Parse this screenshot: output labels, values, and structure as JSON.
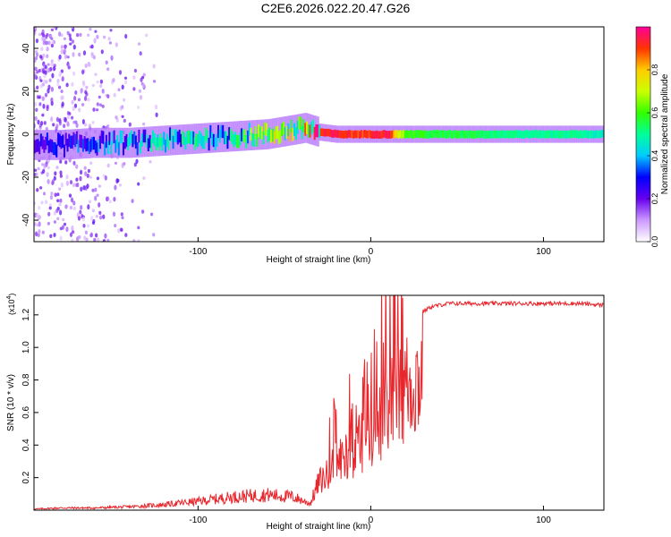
{
  "figure_title": "C2E6.2026.022.20.47.G26",
  "colors": {
    "line": "#e8272d",
    "axis": "#000000"
  },
  "chart_data": [
    {
      "type": "heatmap",
      "title": "C2E6.2026.022.20.47.G26",
      "xlabel": "Height of straight line (km)",
      "ylabel": "Frequency (Hz)",
      "xlim": [
        -195,
        135
      ],
      "ylim": [
        -50,
        50
      ],
      "xticks": [
        -100,
        0,
        100
      ],
      "xtick_labels": [
        "-100",
        "0",
        "100"
      ],
      "yticks": [
        -40,
        -20,
        0,
        20,
        40
      ],
      "ytick_labels": [
        "-40",
        "-20",
        "0",
        "20",
        "40"
      ],
      "colorbar": {
        "label": "Normalized spectral amplitude",
        "range": [
          0,
          1
        ],
        "ticks": [
          0,
          0.2,
          0.4,
          0.6,
          0.8
        ],
        "tick_labels": [
          "0.0",
          "0.2",
          "0.4",
          "0.6",
          "0.8"
        ]
      },
      "ridge": {
        "description": "dominant frequency centre vs height",
        "height_km": [
          -195,
          -180,
          -160,
          -140,
          -120,
          -100,
          -80,
          -60,
          -45,
          -38,
          -30,
          -20,
          -10,
          0,
          10,
          20,
          40,
          60,
          80,
          100,
          120,
          135
        ],
        "freq_hz": [
          -5,
          -5,
          -4,
          -4,
          -3,
          -2,
          -1,
          0,
          2,
          3,
          1,
          0,
          0,
          0,
          0,
          0,
          0,
          0,
          0,
          0,
          0,
          0
        ],
        "peak_amp": [
          0.25,
          0.3,
          0.35,
          0.4,
          0.45,
          0.5,
          0.55,
          0.65,
          0.75,
          0.85,
          0.9,
          0.95,
          0.9,
          0.9,
          0.95,
          0.6,
          0.55,
          0.55,
          0.5,
          0.5,
          0.5,
          0.45
        ]
      }
    },
    {
      "type": "line",
      "xlabel": "Height of straight line (km)",
      "ylabel": "SNR (10 * v/v)",
      "scale_label": "(x10",
      "scale_exponent": "4",
      "scale_suffix": ")",
      "xlim": [
        -195,
        135
      ],
      "ylim": [
        0,
        1.32
      ],
      "xticks": [
        -100,
        0,
        100
      ],
      "xtick_labels": [
        "-100",
        "0",
        "100"
      ],
      "yticks": [
        0.2,
        0.4,
        0.6,
        0.8,
        1.0,
        1.2
      ],
      "ytick_labels": [
        "0.2",
        "0.4",
        "0.6",
        "0.8",
        "1.0",
        "1.2"
      ],
      "series": [
        {
          "name": "SNR",
          "description": "smoothed envelope of the noisy trace",
          "height_km": [
            -195,
            -180,
            -160,
            -140,
            -120,
            -100,
            -80,
            -60,
            -45,
            -35,
            -30,
            -25,
            -20,
            -15,
            -10,
            -5,
            0,
            5,
            10,
            15,
            20,
            25,
            30,
            35,
            40,
            45,
            60,
            80,
            100,
            120,
            135
          ],
          "snr_x1e4": [
            0.01,
            0.02,
            0.02,
            0.03,
            0.05,
            0.08,
            0.12,
            0.14,
            0.12,
            0.06,
            0.26,
            0.32,
            0.44,
            0.5,
            0.55,
            0.62,
            0.7,
            0.78,
            0.88,
            1.05,
            1.12,
            1.18,
            1.22,
            1.25,
            1.26,
            1.27,
            1.27,
            1.27,
            1.27,
            1.27,
            1.26
          ]
        }
      ]
    }
  ]
}
